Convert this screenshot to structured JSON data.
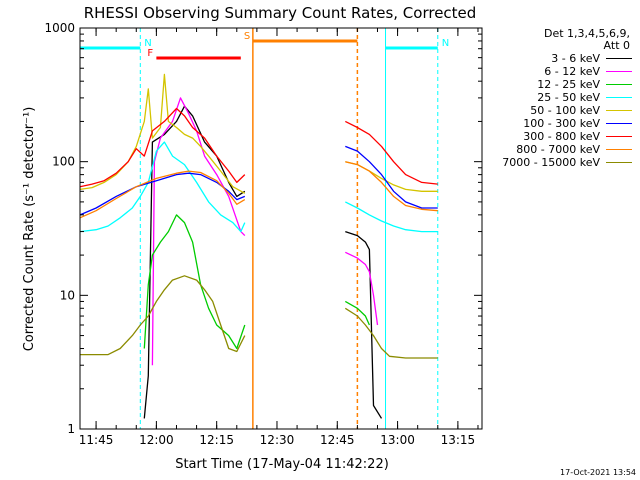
{
  "chart_data": {
    "type": "line",
    "title": "RHESSI Observing Summary Count Rates, Corrected",
    "xlabel": "Start Time (17-May-04 11:42:22)",
    "ylabel": "Corrected Count Rate (s⁻¹ detector⁻¹)",
    "y_scale": "log",
    "xlim": [
      "11:41",
      "13:21"
    ],
    "ylim": [
      1,
      1000
    ],
    "x_ticks": [
      "11:45",
      "12:00",
      "12:15",
      "12:30",
      "12:45",
      "13:00",
      "13:15"
    ],
    "y_ticks": [
      "1",
      "10",
      "100",
      "1000"
    ],
    "legend_header": [
      "Det 1,3,4,5,6,9,",
      "Att 0"
    ],
    "legend_position": "right",
    "series": [
      {
        "name": "3 - 6 keV",
        "color": "#000000",
        "points": [
          [
            "11:57",
            1.2
          ],
          [
            "11:58",
            2.5
          ],
          [
            "11:59",
            140
          ],
          [
            "12:02",
            160
          ],
          [
            "12:05",
            200
          ],
          [
            "12:07",
            260
          ],
          [
            "12:09",
            220
          ],
          [
            "12:12",
            140
          ],
          [
            "12:15",
            110
          ],
          [
            "12:18",
            70
          ],
          [
            "12:20",
            55
          ],
          [
            "12:22",
            60
          ]
        ],
        "points2": [
          [
            "12:47",
            30
          ],
          [
            "12:50",
            28
          ],
          [
            "12:52",
            25
          ],
          [
            "12:53",
            22
          ],
          [
            "12:54",
            1.5
          ],
          [
            "12:56",
            1.2
          ]
        ]
      },
      {
        "name": "6 - 12 keV",
        "color": "#ff00ff",
        "points": [
          [
            "11:59",
            3
          ],
          [
            "11:59.5",
            100
          ],
          [
            "12:01",
            150
          ],
          [
            "12:04",
            200
          ],
          [
            "12:06",
            300
          ],
          [
            "12:08",
            230
          ],
          [
            "12:10",
            170
          ],
          [
            "12:12",
            110
          ],
          [
            "12:15",
            80
          ],
          [
            "12:18",
            55
          ],
          [
            "12:21",
            30
          ],
          [
            "12:22",
            28
          ]
        ],
        "points2": [
          [
            "12:47",
            21
          ],
          [
            "12:50",
            19
          ],
          [
            "12:52",
            17
          ],
          [
            "12:53",
            15
          ],
          [
            "12:54",
            10
          ],
          [
            "12:55",
            6
          ]
        ]
      },
      {
        "name": "12 - 25 keV",
        "color": "#00cc00",
        "points": [
          [
            "11:57",
            4
          ],
          [
            "11:58",
            12
          ],
          [
            "11:59",
            20
          ],
          [
            "12:01",
            25
          ],
          [
            "12:03",
            30
          ],
          [
            "12:05",
            40
          ],
          [
            "12:07",
            35
          ],
          [
            "12:09",
            25
          ],
          [
            "12:11",
            12
          ],
          [
            "12:13",
            8
          ],
          [
            "12:15",
            6
          ],
          [
            "12:18",
            5
          ],
          [
            "12:20",
            4
          ],
          [
            "12:22",
            6
          ]
        ],
        "points2": [
          [
            "12:47",
            9
          ],
          [
            "12:50",
            8
          ],
          [
            "12:52",
            7
          ],
          [
            "12:53",
            6
          ]
        ]
      },
      {
        "name": "25 - 50 keV",
        "color": "#00ffff",
        "points": [
          [
            "11:41",
            30
          ],
          [
            "11:45",
            31
          ],
          [
            "11:48",
            33
          ],
          [
            "11:51",
            38
          ],
          [
            "11:54",
            45
          ],
          [
            "11:56",
            55
          ],
          [
            "11:58",
            70
          ],
          [
            "12:00",
            120
          ],
          [
            "12:02",
            140
          ],
          [
            "12:04",
            110
          ],
          [
            "12:07",
            95
          ],
          [
            "12:10",
            70
          ],
          [
            "12:13",
            50
          ],
          [
            "12:16",
            40
          ],
          [
            "12:19",
            35
          ],
          [
            "12:21",
            30
          ],
          [
            "12:22",
            35
          ]
        ],
        "points2": [
          [
            "12:47",
            50
          ],
          [
            "12:50",
            45
          ],
          [
            "12:53",
            40
          ],
          [
            "12:56",
            36
          ],
          [
            "12:59",
            33
          ],
          [
            "13:02",
            31
          ],
          [
            "13:06",
            30
          ],
          [
            "13:10",
            30
          ]
        ]
      },
      {
        "name": "50 - 100 keV",
        "color": "#d4c400",
        "points": [
          [
            "11:41",
            62
          ],
          [
            "11:44",
            64
          ],
          [
            "11:47",
            70
          ],
          [
            "11:50",
            80
          ],
          [
            "11:53",
            100
          ],
          [
            "11:55",
            130
          ],
          [
            "11:57",
            200
          ],
          [
            "11:58",
            350
          ],
          [
            "11:59",
            150
          ],
          [
            "12:01",
            180
          ],
          [
            "12:02",
            450
          ],
          [
            "12:03",
            200
          ],
          [
            "12:05",
            180
          ],
          [
            "12:07",
            160
          ],
          [
            "12:09",
            150
          ],
          [
            "12:11",
            130
          ],
          [
            "12:13",
            110
          ],
          [
            "12:16",
            85
          ],
          [
            "12:19",
            65
          ],
          [
            "12:22",
            58
          ]
        ],
        "points2": [
          [
            "12:47",
            100
          ],
          [
            "12:50",
            95
          ],
          [
            "12:53",
            85
          ],
          [
            "12:56",
            75
          ],
          [
            "12:59",
            67
          ],
          [
            "13:02",
            62
          ],
          [
            "13:06",
            60
          ],
          [
            "13:10",
            60
          ]
        ]
      },
      {
        "name": "100 - 300 keV",
        "color": "#0000ff",
        "points": [
          [
            "11:41",
            40
          ],
          [
            "11:45",
            45
          ],
          [
            "11:50",
            55
          ],
          [
            "11:55",
            65
          ],
          [
            "12:00",
            72
          ],
          [
            "12:05",
            80
          ],
          [
            "12:08",
            82
          ],
          [
            "12:11",
            80
          ],
          [
            "12:15",
            70
          ],
          [
            "12:18",
            60
          ],
          [
            "12:20",
            52
          ],
          [
            "12:22",
            55
          ]
        ],
        "points2": [
          [
            "12:47",
            130
          ],
          [
            "12:50",
            120
          ],
          [
            "12:53",
            100
          ],
          [
            "12:56",
            80
          ],
          [
            "12:59",
            60
          ],
          [
            "13:02",
            50
          ],
          [
            "13:06",
            45
          ],
          [
            "13:10",
            45
          ]
        ]
      },
      {
        "name": "300 - 800 keV",
        "color": "#ff0000",
        "points": [
          [
            "11:41",
            65
          ],
          [
            "11:44",
            68
          ],
          [
            "11:47",
            72
          ],
          [
            "11:50",
            82
          ],
          [
            "11:53",
            100
          ],
          [
            "11:55",
            125
          ],
          [
            "11:57",
            110
          ],
          [
            "11:59",
            170
          ],
          [
            "12:02",
            200
          ],
          [
            "12:05",
            250
          ],
          [
            "12:07",
            220
          ],
          [
            "12:09",
            180
          ],
          [
            "12:12",
            150
          ],
          [
            "12:15",
            110
          ],
          [
            "12:18",
            85
          ],
          [
            "12:20",
            70
          ],
          [
            "12:22",
            80
          ]
        ],
        "points2": [
          [
            "12:47",
            200
          ],
          [
            "12:50",
            180
          ],
          [
            "12:53",
            160
          ],
          [
            "12:56",
            130
          ],
          [
            "12:59",
            100
          ],
          [
            "13:02",
            80
          ],
          [
            "13:06",
            70
          ],
          [
            "13:10",
            68
          ]
        ]
      },
      {
        "name": "800 - 7000 keV",
        "color": "#ff8000",
        "points": [
          [
            "11:41",
            38
          ],
          [
            "11:45",
            43
          ],
          [
            "11:50",
            53
          ],
          [
            "11:55",
            65
          ],
          [
            "12:00",
            75
          ],
          [
            "12:05",
            82
          ],
          [
            "12:08",
            85
          ],
          [
            "12:11",
            83
          ],
          [
            "12:15",
            72
          ],
          [
            "12:18",
            58
          ],
          [
            "12:20",
            48
          ],
          [
            "12:22",
            52
          ]
        ],
        "points2": [
          [
            "12:47",
            100
          ],
          [
            "12:50",
            95
          ],
          [
            "12:53",
            85
          ],
          [
            "12:56",
            70
          ],
          [
            "12:59",
            55
          ],
          [
            "13:02",
            47
          ],
          [
            "13:06",
            44
          ],
          [
            "13:10",
            43
          ]
        ]
      },
      {
        "name": "7000 - 15000 keV",
        "color": "#8b8b00",
        "points": [
          [
            "11:41",
            3.6
          ],
          [
            "11:45",
            3.6
          ],
          [
            "11:48",
            3.6
          ],
          [
            "11:51",
            4
          ],
          [
            "11:54",
            5
          ],
          [
            "11:56",
            6
          ],
          [
            "11:58",
            7
          ],
          [
            "12:00",
            9
          ],
          [
            "12:02",
            11
          ],
          [
            "12:04",
            13
          ],
          [
            "12:07",
            14
          ],
          [
            "12:10",
            13
          ],
          [
            "12:12",
            11
          ],
          [
            "12:14",
            9
          ],
          [
            "12:16",
            6
          ],
          [
            "12:18",
            4
          ],
          [
            "12:20",
            3.8
          ],
          [
            "12:22",
            5
          ]
        ],
        "points2": [
          [
            "12:47",
            8
          ],
          [
            "12:50",
            7
          ],
          [
            "12:52",
            6
          ],
          [
            "12:54",
            5
          ],
          [
            "12:56",
            4
          ],
          [
            "12:58",
            3.5
          ],
          [
            "13:02",
            3.4
          ],
          [
            "13:06",
            3.4
          ],
          [
            "13:10",
            3.4
          ]
        ]
      }
    ],
    "markers": [
      {
        "label": "N",
        "color": "#00ffff",
        "x_start": "11:41",
        "x_end": "11:56"
      },
      {
        "label": "N",
        "color": "#00ffff",
        "x_start": "12:57",
        "x_end": "13:10"
      },
      {
        "label": "F",
        "color": "#ff0000",
        "x_start": "12:00",
        "x_end": "12:21"
      },
      {
        "label": "S",
        "color": "#ff8000",
        "x_start": "12:24",
        "x_end": "12:50"
      }
    ],
    "grid": false
  },
  "timestamp": "17-Oct-2021 13:54"
}
